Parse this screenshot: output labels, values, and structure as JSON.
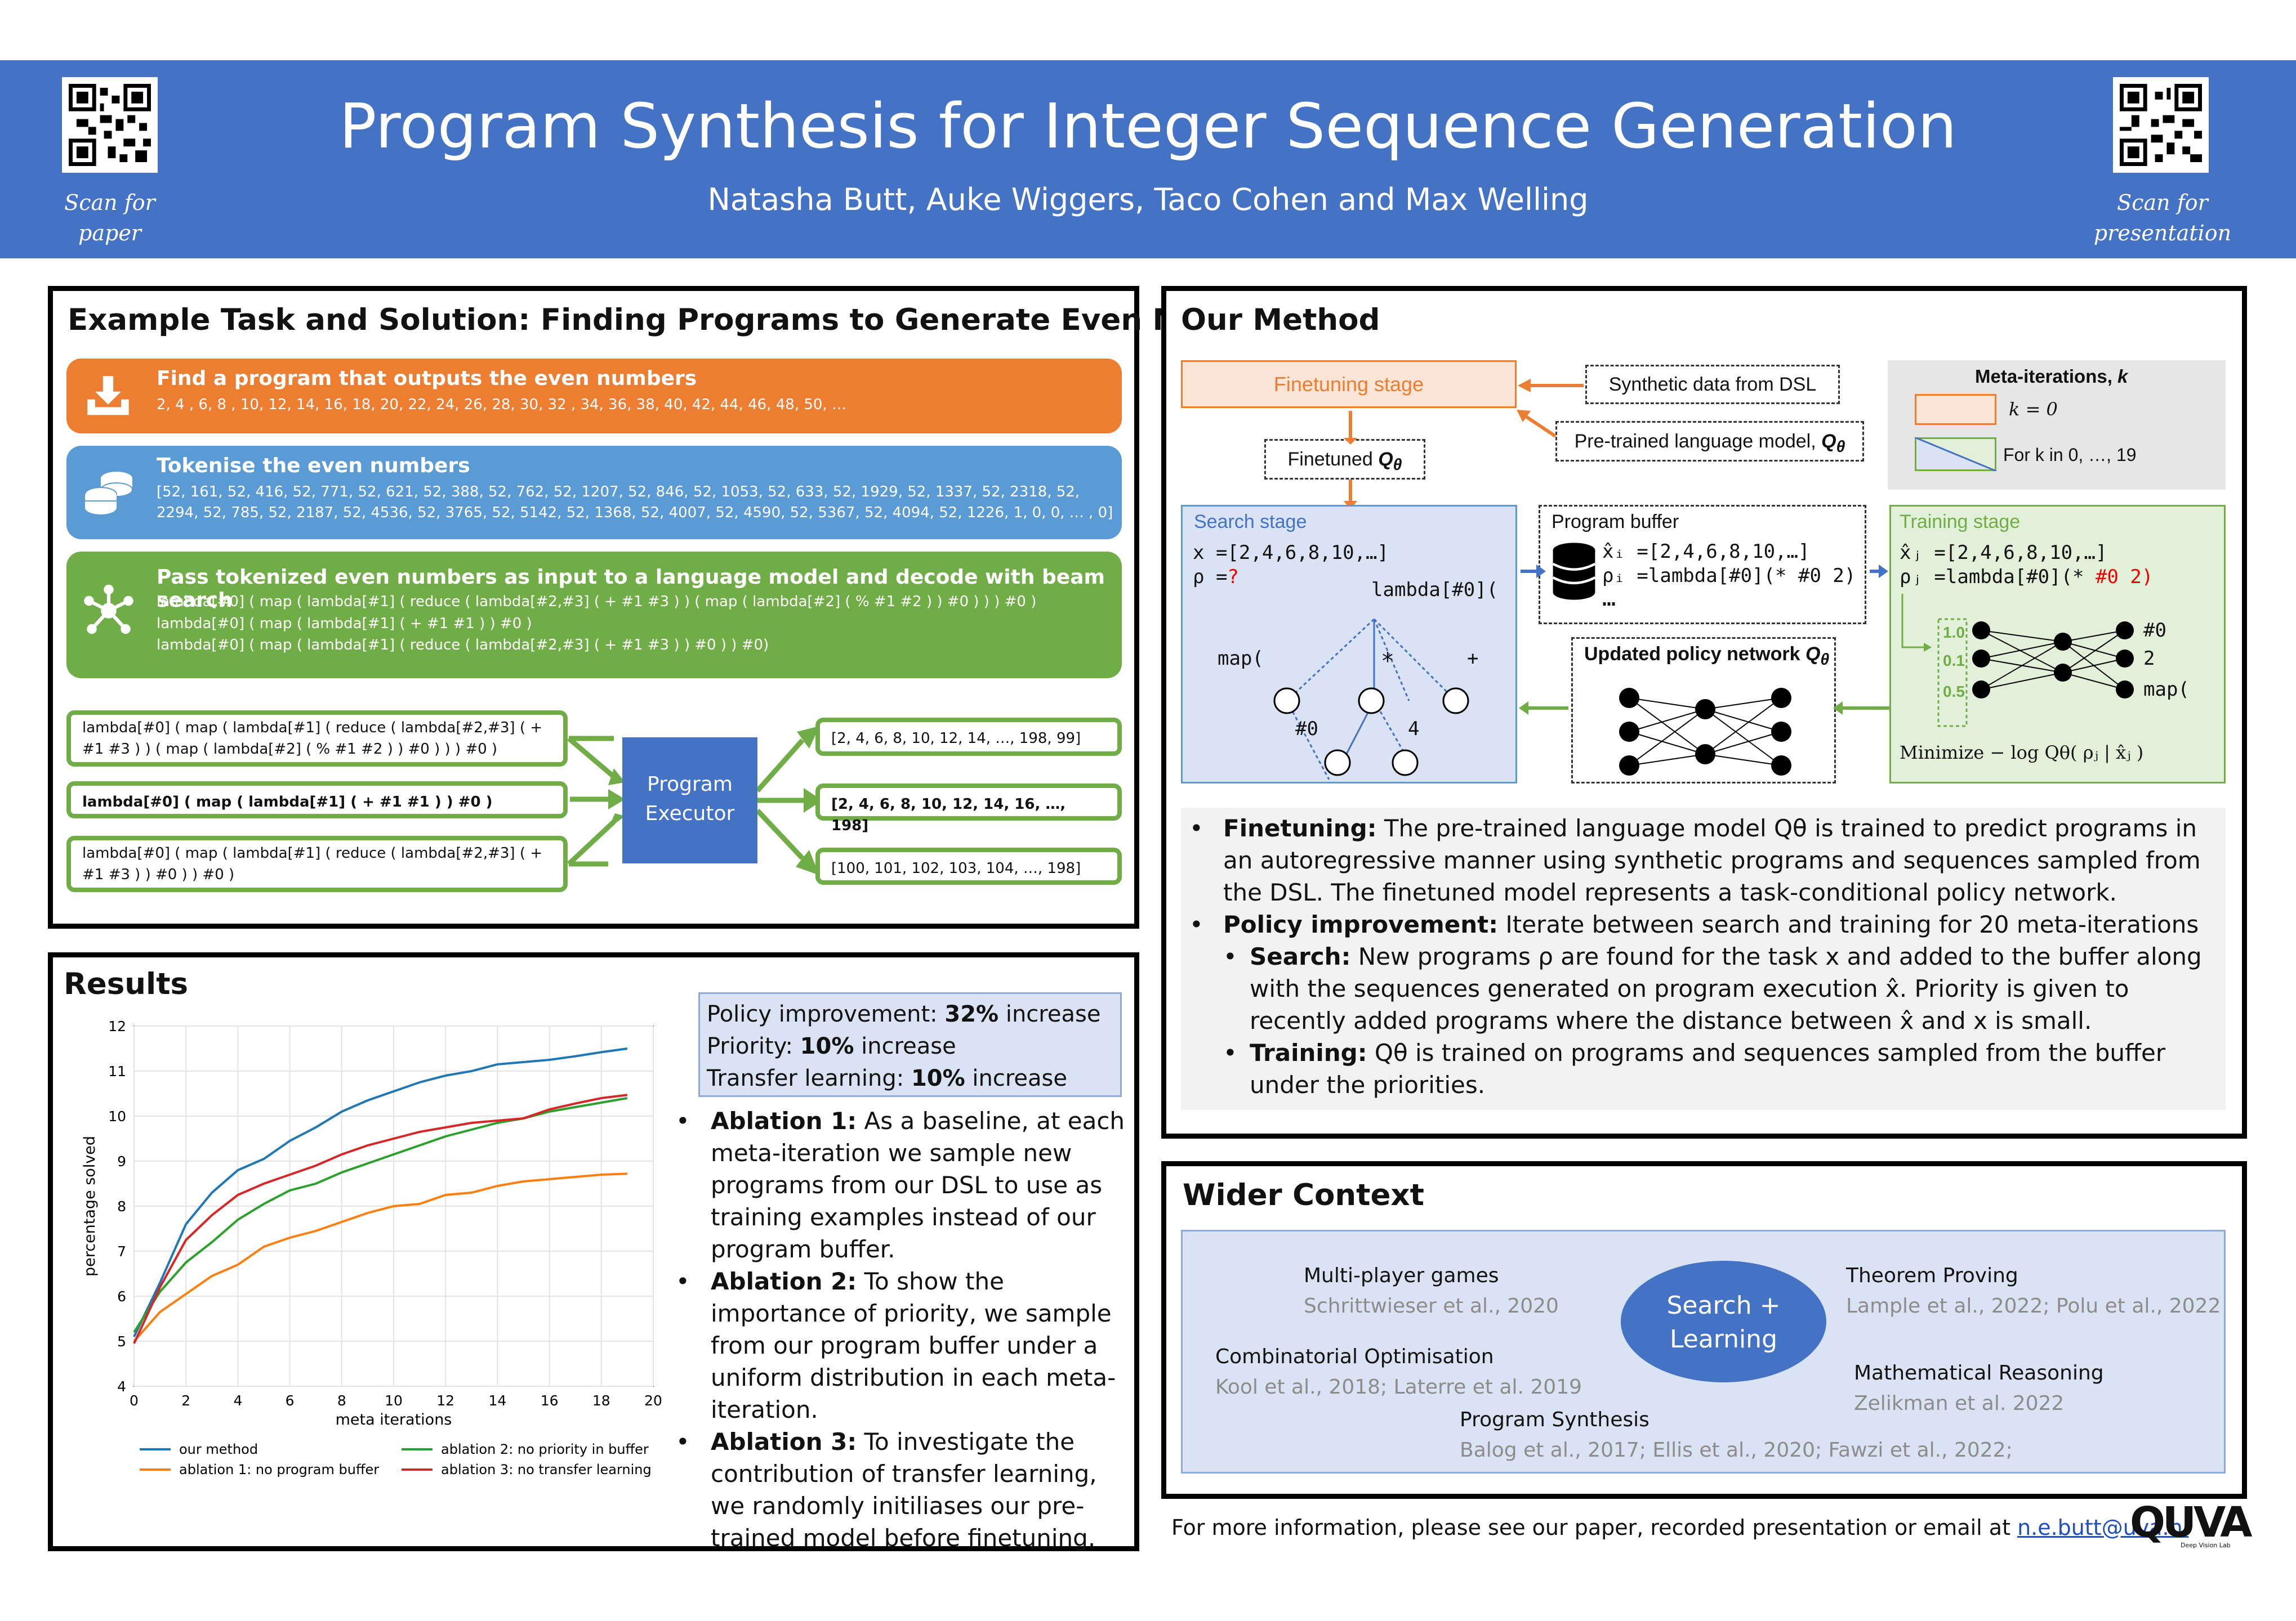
{
  "header": {
    "title": "Program Synthesis for Integer Sequence Generation",
    "authors": "Natasha Butt, Auke Wiggers, Taco Cohen and Max Welling",
    "qr_left_caption_1": "Scan for",
    "qr_left_caption_2": "paper",
    "qr_right_caption_1": "Scan for",
    "qr_right_caption_2": "presentation"
  },
  "example": {
    "title": "Example Task and Solution: Finding Programs to Generate Even Numbers",
    "step1_title": "Find a program that outputs the even numbers",
    "step1_text": "2, 4 , 6, 8 , 10, 12, 14, 16, 18, 20, 22, 24, 26, 28, 30, 32 , 34, 36, 38, 40, 42, 44, 46, 48, 50, …",
    "step2_title": "Tokenise the even numbers",
    "step2_line1": "[52, 161, 52, 416, 52, 771, 52, 621, 52, 388, 52, 762, 52, 1207, 52, 846, 52, 1053, 52, 633, 52, 1929, 52, 1337, 52, 2318, 52,",
    "step2_line2": "2294, 52, 785, 52, 2187, 52, 4536, 52, 3765, 52, 5142, 52, 1368, 52, 4007, 52, 4590, 52, 5367, 52, 4094, 52, 1226, 1, 0, 0, … , 0]",
    "step3_title": "Pass tokenized even numbers as input to a language model and decode with beam search",
    "step3_line1": "lambda[#0] ( map ( lambda[#1] ( reduce ( lambda[#2,#3] ( + #1 #3 ) ) ( map ( lambda[#2] ( % #1 #2 ) ) #0 ) ) ) #0 )",
    "step3_line2": "lambda[#0] ( map ( lambda[#1] ( + #1 #1 ) ) #0 )",
    "step3_line3": "lambda[#0] ( map ( lambda[#1] ( reduce ( lambda[#2,#3] ( + #1 #3 ) ) #0 ) ) #0)",
    "prog1_line1": "lambda[#0] ( map ( lambda[#1] ( reduce ( lambda[#2,#3] ( +",
    "prog1_line2": "#1 #3 ) ) ( map ( lambda[#2] ( % #1 #2 ) ) #0 ) ) ) #0 )",
    "prog2": "lambda[#0] ( map ( lambda[#1] ( + #1 #1 ) ) #0 )",
    "prog3_line1": "lambda[#0] ( map ( lambda[#1] ( reduce ( lambda[#2,#3] ( +",
    "prog3_line2": "#1 #3 ) ) #0 ) ) #0 )",
    "executor_line1": "Program",
    "executor_line2": "Executor",
    "out1": "[2, 4, 6, 8, 10, 12, 14, …, 198, 99]",
    "out2": "[2, 4, 6, 8, 10, 12, 14, 16, …, 198]",
    "out3": "[100, 101, 102, 103, 104, …, 198]"
  },
  "results": {
    "title": "Results",
    "stats_label_1": "Policy improvement: ",
    "stats_value_1": "32%",
    "stats_suffix_1": " increase",
    "stats_label_2": "Priority: ",
    "stats_value_2": "10%",
    "stats_suffix_2": " increase",
    "stats_label_3": "Transfer learning: ",
    "stats_value_3": "10%",
    "stats_suffix_3": " increase",
    "ablation1_head": "Ablation 1:",
    "ablation1_text": " As a baseline, at each meta-iteration we sample new programs from our DSL to use as training examples instead of our program buffer.",
    "ablation2_head": "Ablation 2:",
    "ablation2_text": " To show the importance of priority, we sample from our program buffer under a uniform distribution in each meta-iteration.",
    "ablation3_head": "Ablation 3:",
    "ablation3_text": " To investigate the contribution of transfer learning, we randomly initiliases our pre-trained model before finetuning."
  },
  "chart_data": {
    "type": "line",
    "title": "",
    "xlabel": "meta iterations",
    "ylabel": "percentage solved",
    "xlim": [
      0,
      20
    ],
    "ylim": [
      4,
      12
    ],
    "xticks": [
      0,
      2,
      4,
      6,
      8,
      10,
      12,
      14,
      16,
      18,
      20
    ],
    "yticks": [
      4,
      5,
      6,
      7,
      8,
      9,
      10,
      11,
      12
    ],
    "grid": true,
    "legend": "bottom",
    "x": [
      0,
      1,
      2,
      3,
      4,
      5,
      6,
      7,
      8,
      9,
      10,
      11,
      12,
      13,
      14,
      15,
      16,
      17,
      18,
      19
    ],
    "series": [
      {
        "name": "our method",
        "color": "#1f77b4",
        "values": [
          5.1,
          6.3,
          7.6,
          8.3,
          8.8,
          9.05,
          9.45,
          9.75,
          10.1,
          10.35,
          10.55,
          10.75,
          10.9,
          11.0,
          11.15,
          11.2,
          11.25,
          11.33,
          11.42,
          11.5
        ]
      },
      {
        "name": "ablation 1: no program buffer",
        "color": "#ff7f0e",
        "values": [
          5.0,
          5.65,
          6.05,
          6.45,
          6.7,
          7.1,
          7.3,
          7.45,
          7.65,
          7.85,
          8.0,
          8.05,
          8.25,
          8.3,
          8.45,
          8.55,
          8.6,
          8.65,
          8.7,
          8.72
        ]
      },
      {
        "name": "ablation 2: no priority in buffer",
        "color": "#2ca02c",
        "values": [
          5.2,
          6.1,
          6.75,
          7.2,
          7.7,
          8.05,
          8.35,
          8.5,
          8.75,
          8.95,
          9.15,
          9.35,
          9.55,
          9.7,
          9.85,
          9.95,
          10.1,
          10.2,
          10.3,
          10.4
        ]
      },
      {
        "name": "ablation 3: no transfer learning",
        "color": "#d62728",
        "values": [
          4.95,
          6.2,
          7.25,
          7.8,
          8.25,
          8.5,
          8.7,
          8.9,
          9.15,
          9.35,
          9.5,
          9.65,
          9.75,
          9.85,
          9.9,
          9.95,
          10.15,
          10.28,
          10.4,
          10.47
        ]
      }
    ]
  },
  "method": {
    "title": "Our Method",
    "finetuning_stage": "Finetuning stage",
    "synthetic_data": "Synthetic data from DSL",
    "pretrained_lm": "Pre-trained language model, ",
    "finetuned": "Finetuned ",
    "q_theta": "Q",
    "q_sub": "θ",
    "meta_title": "Meta-iterations, ",
    "meta_k": "k",
    "k_eq_0": "k = 0",
    "for_k": "For k in 0, …, 19",
    "search_stage": "Search stage",
    "search_x": "x =[2,4,6,8,10,…]",
    "search_rho": "ρ =",
    "search_q": "?",
    "tree_root": "lambda[#0](",
    "tree_map": "map(",
    "tree_star": "*",
    "tree_plus": "+",
    "tree_h0": "#0",
    "tree_4": "4",
    "buffer_title": "Program buffer",
    "buffer_x": "x̂ᵢ =[2,4,6,8,10,…]",
    "buffer_rho": "ρᵢ =lambda[#0](* #0 2)",
    "buffer_dots": "…",
    "updated_policy": "Updated policy network ",
    "training_stage": "Training stage",
    "train_x": "x̂ⱼ =[2,4,6,8,10,…]",
    "train_rho": "ρⱼ =lambda[#0](* ",
    "train_rho_red": "#0 2)",
    "prob_1": "1.0",
    "prob_2": "0.1",
    "prob_3": "0.5",
    "out_1": "#0",
    "out_2": "2",
    "out_3": "map(",
    "minimize": "Minimize  − log Qθ( ρⱼ | x̂ⱼ )",
    "b1_head": "Finetuning:",
    "b1_text": " The pre-trained language model Qθ is trained to predict programs in an autoregressive manner using synthetic programs and sequences sampled from the DSL. The finetuned model represents a task-conditional policy network.",
    "b2_head": "Policy improvement:",
    "b2_text": " Iterate between search and training for 20 meta-iterations",
    "b3_head": "Search:",
    "b3_text": " New programs ρ are found for the task x and added to the buffer along with the sequences generated on program execution x̂. Priority is given to recently added programs where the distance between x̂ and x is small.",
    "b4_head": "Training:",
    "b4_text": " Qθ is trained on programs and sequences sampled from the buffer under the priorities."
  },
  "context": {
    "title": "Wider Context",
    "center_1": "Search +",
    "center_2": "Learning",
    "mp_title": "Multi-player games",
    "mp_ref": "Schrittwieser et al., 2020",
    "co_title": "Combinatorial Optimisation",
    "co_ref": "Kool et al., 2018; Laterre et al. 2019",
    "ps_title": "Program Synthesis",
    "ps_ref": "Balog et al., 2017; Ellis et  al., 2020; Fawzi et al., 2022;",
    "tp_title": "Theorem Proving",
    "tp_ref": "Lample et al., 2022; Polu et al., 2022",
    "mr_title": "Mathematical Reasoning",
    "mr_ref": "Zelikman et al. 2022"
  },
  "footer": {
    "text": "For more information, please see our paper, recorded presentation or email at ",
    "email": "n.e.butt@uva.nl",
    "logo": "QUVA",
    "logo_sub": "Deep Vision Lab"
  },
  "colors": {
    "header": "#4472c4",
    "orange": "#ed7d31",
    "blue": "#5b9bd5",
    "green": "#70ad47"
  }
}
